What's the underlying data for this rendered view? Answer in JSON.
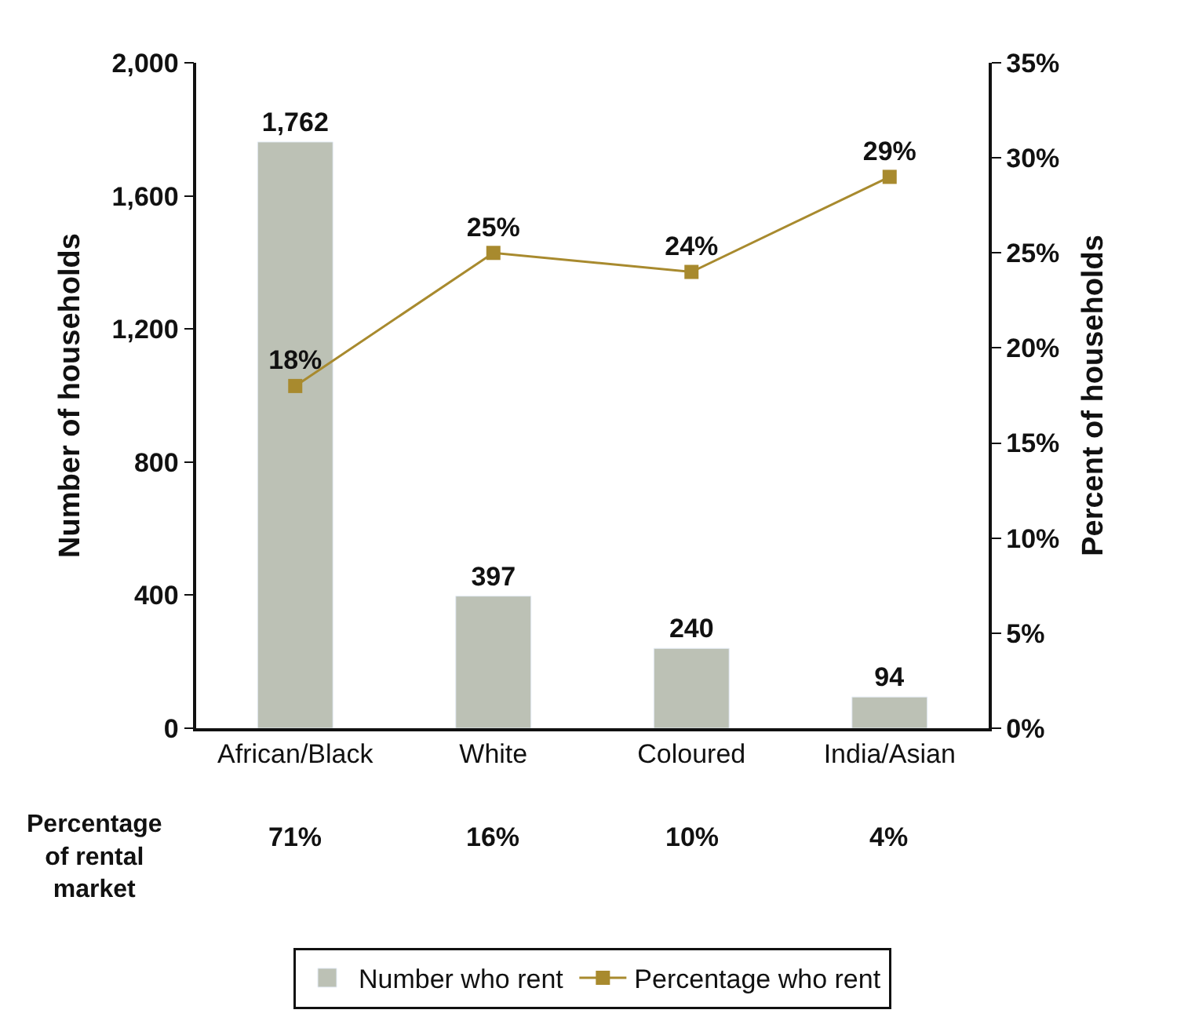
{
  "chart_data": {
    "type": "bar",
    "ylabel": "Number of households",
    "y2label": "Percent of households",
    "categories": [
      "African/Black",
      "White",
      "Coloured",
      "India/Asian"
    ],
    "series": [
      {
        "name": "Number who rent",
        "color": "#bcc1b5",
        "values": [
          1762,
          397,
          240,
          94
        ],
        "value_labels": [
          "1,762",
          "397",
          "240",
          "94"
        ]
      },
      {
        "name": "Percentage who rent",
        "type": "line",
        "axis": "y2",
        "color": "#a88a2e",
        "marker": "square",
        "values": [
          18,
          25,
          24,
          29
        ],
        "value_labels": [
          "18%",
          "25%",
          "24%",
          "29%"
        ]
      }
    ],
    "ylim": [
      0,
      2000
    ],
    "yticks": [
      0,
      {
        "value": 400,
        "label": "400"
      },
      {
        "value": 800,
        "label": "800"
      },
      {
        "value": 1200,
        "label": "1,200"
      },
      {
        "value": 1600,
        "label": "1,600"
      },
      {
        "value": 2000,
        "label": "2,000"
      }
    ],
    "y2lim": [
      0,
      35
    ],
    "y2ticks": [
      {
        "value": 0,
        "label": "0%"
      },
      {
        "value": 5,
        "label": "5%"
      },
      {
        "value": 10,
        "label": "10%"
      },
      {
        "value": 15,
        "label": "15%"
      },
      {
        "value": 20,
        "label": "20%"
      },
      {
        "value": 25,
        "label": "25%"
      },
      {
        "value": 30,
        "label": "30%"
      },
      {
        "value": 35,
        "label": "35%"
      }
    ],
    "annotations": [
      "Percentage of rental market",
      "71%",
      "16%",
      "10%",
      "4%"
    ],
    "legend": "bottom"
  }
}
